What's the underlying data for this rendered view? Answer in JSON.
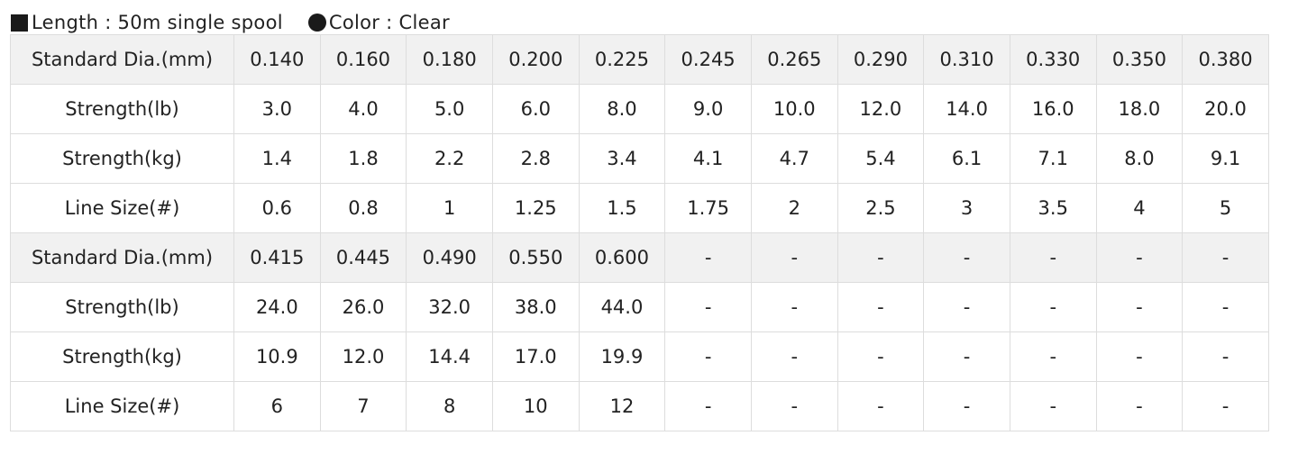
{
  "header": {
    "length_text": "Length : 50m single spool",
    "color_text": "Color : Clear",
    "square_icon": "black-square-icon",
    "circle_icon": "black-circle-icon"
  },
  "colors": {
    "header_row_bg": "#f1f1f1",
    "border": "#dddddd",
    "text": "#222222"
  },
  "table": {
    "rows": [
      {
        "label": "Standard Dia.(mm)",
        "shaded": true,
        "values": [
          "0.140",
          "0.160",
          "0.180",
          "0.200",
          "0.225",
          "0.245",
          "0.265",
          "0.290",
          "0.310",
          "0.330",
          "0.350",
          "0.380"
        ]
      },
      {
        "label": "Strength(lb)",
        "shaded": false,
        "values": [
          "3.0",
          "4.0",
          "5.0",
          "6.0",
          "8.0",
          "9.0",
          "10.0",
          "12.0",
          "14.0",
          "16.0",
          "18.0",
          "20.0"
        ]
      },
      {
        "label": "Strength(kg)",
        "shaded": false,
        "values": [
          "1.4",
          "1.8",
          "2.2",
          "2.8",
          "3.4",
          "4.1",
          "4.7",
          "5.4",
          "6.1",
          "7.1",
          "8.0",
          "9.1"
        ]
      },
      {
        "label": "Line Size(#)",
        "shaded": false,
        "values": [
          "0.6",
          "0.8",
          "1",
          "1.25",
          "1.5",
          "1.75",
          "2",
          "2.5",
          "3",
          "3.5",
          "4",
          "5"
        ]
      },
      {
        "label": "Standard Dia.(mm)",
        "shaded": true,
        "values": [
          "0.415",
          "0.445",
          "0.490",
          "0.550",
          "0.600",
          "-",
          "-",
          "-",
          "-",
          "-",
          "-",
          "-"
        ]
      },
      {
        "label": "Strength(lb)",
        "shaded": false,
        "values": [
          "24.0",
          "26.0",
          "32.0",
          "38.0",
          "44.0",
          "-",
          "-",
          "-",
          "-",
          "-",
          "-",
          "-"
        ]
      },
      {
        "label": "Strength(kg)",
        "shaded": false,
        "values": [
          "10.9",
          "12.0",
          "14.4",
          "17.0",
          "19.9",
          "-",
          "-",
          "-",
          "-",
          "-",
          "-",
          "-"
        ]
      },
      {
        "label": "Line Size(#)",
        "shaded": false,
        "values": [
          "6",
          "7",
          "8",
          "10",
          "12",
          "-",
          "-",
          "-",
          "-",
          "-",
          "-",
          "-"
        ]
      }
    ]
  }
}
